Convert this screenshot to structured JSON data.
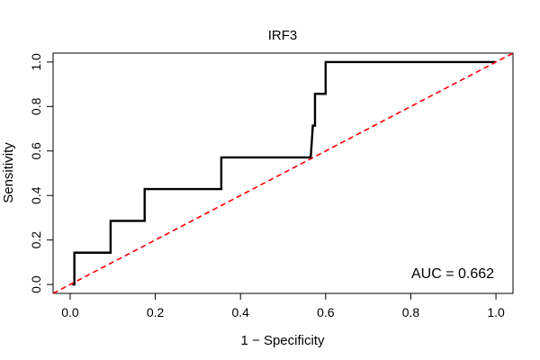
{
  "chart_data": {
    "type": "line",
    "title": "IRF3",
    "xlabel": "1 − Specificity",
    "ylabel": "Sensitivity",
    "xlim": [
      -0.04,
      1.04
    ],
    "ylim": [
      -0.04,
      1.04
    ],
    "x_ticks": [
      0.0,
      0.2,
      0.4,
      0.6,
      0.8,
      1.0
    ],
    "x_tick_labels": [
      "0.0",
      "0.2",
      "0.4",
      "0.6",
      "0.8",
      "1.0"
    ],
    "y_ticks": [
      0.0,
      0.2,
      0.4,
      0.6,
      0.8,
      1.0
    ],
    "y_tick_labels": [
      "0.0",
      "0.2",
      "0.4",
      "0.6",
      "0.8",
      "1.0"
    ],
    "grid": false,
    "annotation": "AUC = 0.662",
    "series": [
      {
        "style": "solid",
        "color": "#000000",
        "points": [
          [
            0.005,
            0.0
          ],
          [
            0.01,
            0.0
          ],
          [
            0.01,
            0.143
          ],
          [
            0.09,
            0.143
          ],
          [
            0.09,
            0.143
          ],
          [
            0.095,
            0.143
          ],
          [
            0.095,
            0.286
          ],
          [
            0.17,
            0.286
          ],
          [
            0.17,
            0.286
          ],
          [
            0.175,
            0.286
          ],
          [
            0.175,
            0.429
          ],
          [
            0.355,
            0.429
          ],
          [
            0.355,
            0.571
          ],
          [
            0.565,
            0.571
          ],
          [
            0.57,
            0.714
          ],
          [
            0.575,
            0.714
          ],
          [
            0.575,
            0.857
          ],
          [
            0.595,
            0.857
          ],
          [
            0.6,
            0.857
          ],
          [
            0.6,
            1.0
          ],
          [
            1.0,
            1.0
          ]
        ]
      },
      {
        "style": "dashed",
        "color": "#ff0000",
        "points": [
          [
            -0.04,
            -0.04
          ],
          [
            1.04,
            1.04
          ]
        ]
      }
    ]
  }
}
